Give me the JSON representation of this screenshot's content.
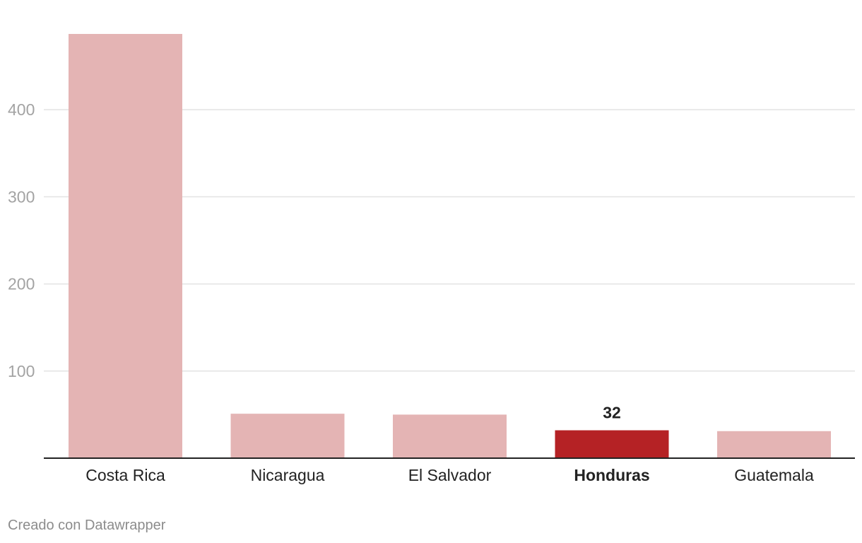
{
  "chart_data": {
    "type": "bar",
    "categories": [
      "Costa Rica",
      "Nicaragua",
      "El Salvador",
      "Honduras",
      "Guatemala"
    ],
    "values": [
      487,
      51,
      50,
      32,
      31
    ],
    "highlight": "Honduras",
    "value_labels": [
      {
        "category": "Honduras",
        "text": "32"
      }
    ],
    "ylim": [
      0,
      487
    ],
    "yticks": [
      100,
      200,
      300,
      400
    ],
    "grid": true,
    "colors": {
      "bar": "#e4b4b4",
      "highlight": "#b52225",
      "grid": "#e3e3e3",
      "axis": "#222222"
    }
  },
  "credit": "Creado con Datawrapper"
}
